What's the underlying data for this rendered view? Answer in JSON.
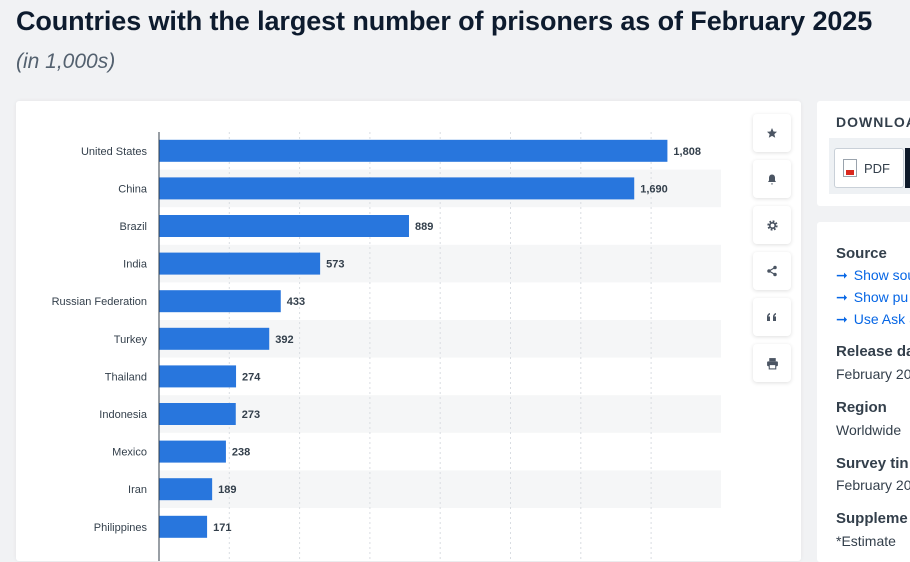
{
  "header": {
    "title": "Countries with the largest number of prisoners as of February 2025",
    "subtitle": "(in 1,000s)"
  },
  "toolbar": {
    "icons": [
      "star-icon",
      "bell-icon",
      "gear-icon",
      "share-icon",
      "quote-icon",
      "print-icon"
    ]
  },
  "download": {
    "title": "DOWNLOA",
    "pdf_label": "PDF"
  },
  "info": {
    "source_heading": "Source",
    "links": [
      "Show sou",
      "Show pu",
      "Use Ask S"
    ],
    "release_heading": "Release da",
    "release_value": "February 20",
    "region_heading": "Region",
    "region_value": "Worldwide",
    "survey_heading": "Survey tin",
    "survey_value": "February 20",
    "supplement_heading": "Suppleme",
    "supplement_value": "*Estimate"
  },
  "colors": {
    "bar": "#2876dd",
    "stripe": "#f5f6f7",
    "link": "#0666e5"
  },
  "chart_data": {
    "type": "bar",
    "orientation": "horizontal",
    "categories": [
      "United States",
      "China",
      "Brazil",
      "India",
      "Russian Federation",
      "Turkey",
      "Thailand",
      "Indonesia",
      "Mexico",
      "Iran",
      "Philippines"
    ],
    "values": [
      1808,
      1690,
      889,
      573,
      433,
      392,
      274,
      273,
      238,
      189,
      171
    ],
    "value_labels": [
      "1,808",
      "1,690",
      "889",
      "573",
      "433",
      "392",
      "274",
      "273",
      "238",
      "189",
      "171"
    ],
    "xlim": [
      0,
      2000
    ],
    "grid": true
  }
}
